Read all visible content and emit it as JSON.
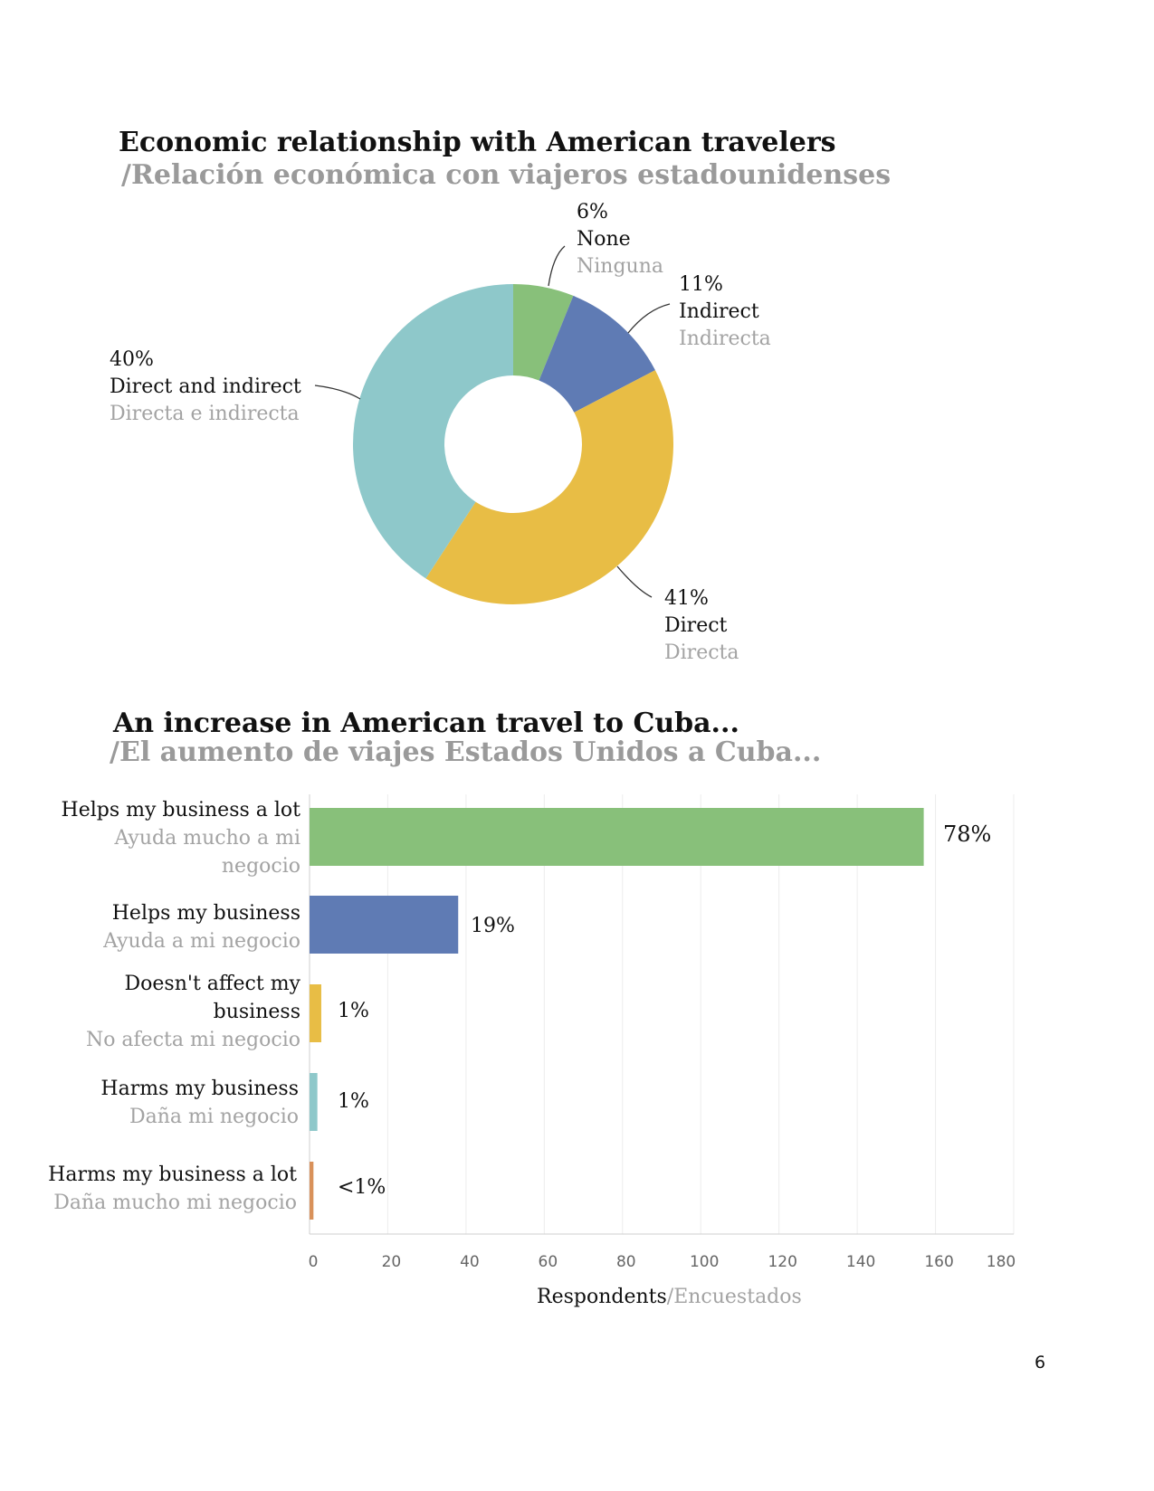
{
  "chart_data": [
    {
      "type": "pie",
      "variant": "donut",
      "title": "Economic relationship with American travelers",
      "subtitle": "/Relación económica con viajeros estadounidenses",
      "slices": [
        {
          "pct": 6,
          "pct_label": "6%",
          "label": "None",
          "label_es": "Ninguna",
          "color": "#88c07a"
        },
        {
          "pct": 11,
          "pct_label": "11%",
          "label": "Indirect",
          "label_es": "Indirecta",
          "color": "#5f7bb4"
        },
        {
          "pct": 41,
          "pct_label": "41%",
          "label": "Direct",
          "label_es": "Directa",
          "color": "#e8bd45"
        },
        {
          "pct": 40,
          "pct_label": "40%",
          "label": "Direct and indirect",
          "label_es": "Directa e indirecta",
          "color": "#8ec8ca"
        }
      ]
    },
    {
      "type": "bar",
      "orientation": "horizontal",
      "title": "An increase in American travel to Cuba...",
      "subtitle": "/El aumento de viajes Estados Unidos a Cuba...",
      "xlabel": "Respondents",
      "xlabel_es": "/Encuestados",
      "xlim": [
        0,
        180
      ],
      "xticks": [
        "0",
        "20",
        "40",
        "60",
        "80",
        "100",
        "120",
        "140",
        "160",
        "180"
      ],
      "grid": true,
      "categories": [
        {
          "en": "Helps my business a lot",
          "es": "Ayuda mucho a mi negocio"
        },
        {
          "en": "Helps my business",
          "es": "Ayuda a mi negocio"
        },
        {
          "en": "Doesn't affect my business",
          "es": "No afecta mi negocio"
        },
        {
          "en": "Harms my business",
          "es": "Daña mi negocio"
        },
        {
          "en": "Harms my business a lot",
          "es": "Daña mucho mi negocio"
        }
      ],
      "values": [
        157,
        38,
        3,
        2,
        1
      ],
      "pct_labels": [
        "78%",
        "19%",
        "1%",
        "1%",
        "<1%"
      ],
      "colors": [
        "#88c07a",
        "#5f7bb4",
        "#e8bd45",
        "#8ec8ca",
        "#d9915a"
      ]
    }
  ],
  "page_number": "6"
}
